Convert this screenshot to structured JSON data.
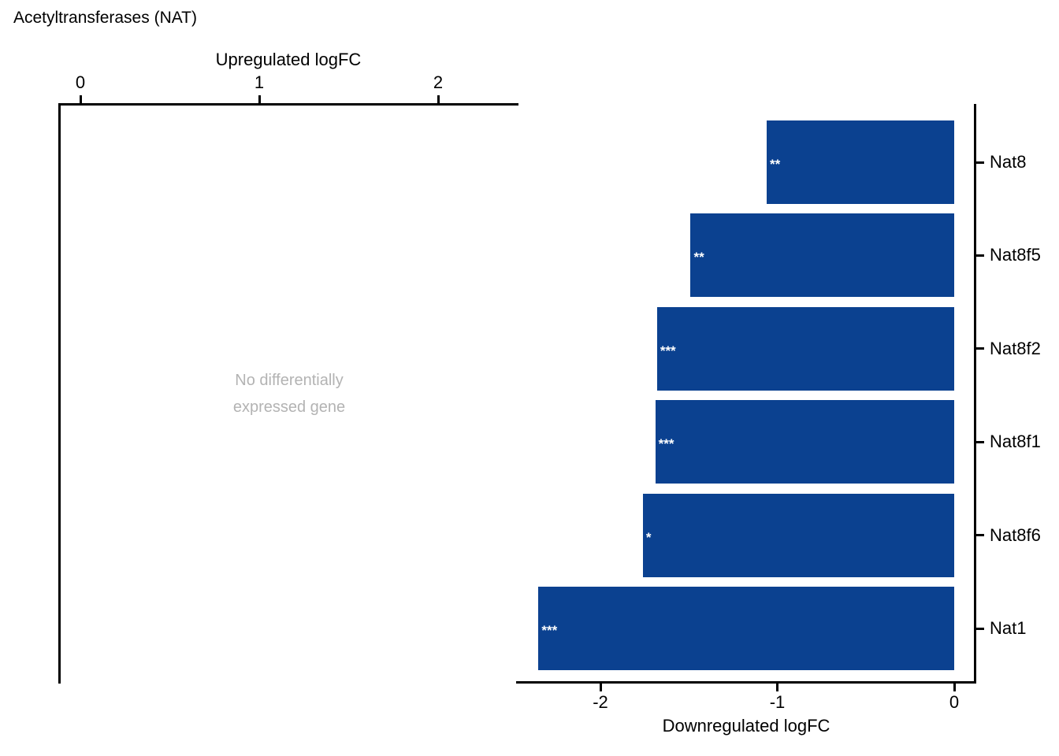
{
  "title": "Acetyltransferases (NAT)",
  "left_panel": {
    "axis_title": "Upregulated logFC",
    "message_line1": "No differentially",
    "message_line2": "expressed gene"
  },
  "right_panel": {
    "axis_title": "Downregulated logFC"
  },
  "colors": {
    "bar": "#0b4190",
    "axis": "#000000",
    "muted_text": "#b3b3b3",
    "star": "#ffffff"
  },
  "chart_data": {
    "type": "bar",
    "orientation": "horizontal",
    "title": "Acetyltransferases (NAT)",
    "grid": false,
    "legend_position": "none",
    "bar_color": "#0b4190",
    "panels": [
      {
        "name": "upregulated",
        "xlabel": "Upregulated logFC",
        "xticks": [
          0,
          1,
          2
        ],
        "xlim": [
          -0.12,
          2.45
        ],
        "annotation": "No differentially expressed gene",
        "categories": [],
        "values": [],
        "significance": []
      },
      {
        "name": "downregulated",
        "xlabel": "Downregulated logFC",
        "xticks": [
          -2,
          -1,
          0
        ],
        "xlim": [
          -2.48,
          0.12
        ],
        "categories": [
          "Nat8",
          "Nat8f5",
          "Nat8f2",
          "Nat8f1",
          "Nat8f6",
          "Nat1"
        ],
        "values": [
          -1.06,
          -1.49,
          -1.68,
          -1.69,
          -1.76,
          -2.35
        ],
        "significance": [
          "**",
          "**",
          "***",
          "***",
          "*",
          "***"
        ]
      }
    ]
  }
}
